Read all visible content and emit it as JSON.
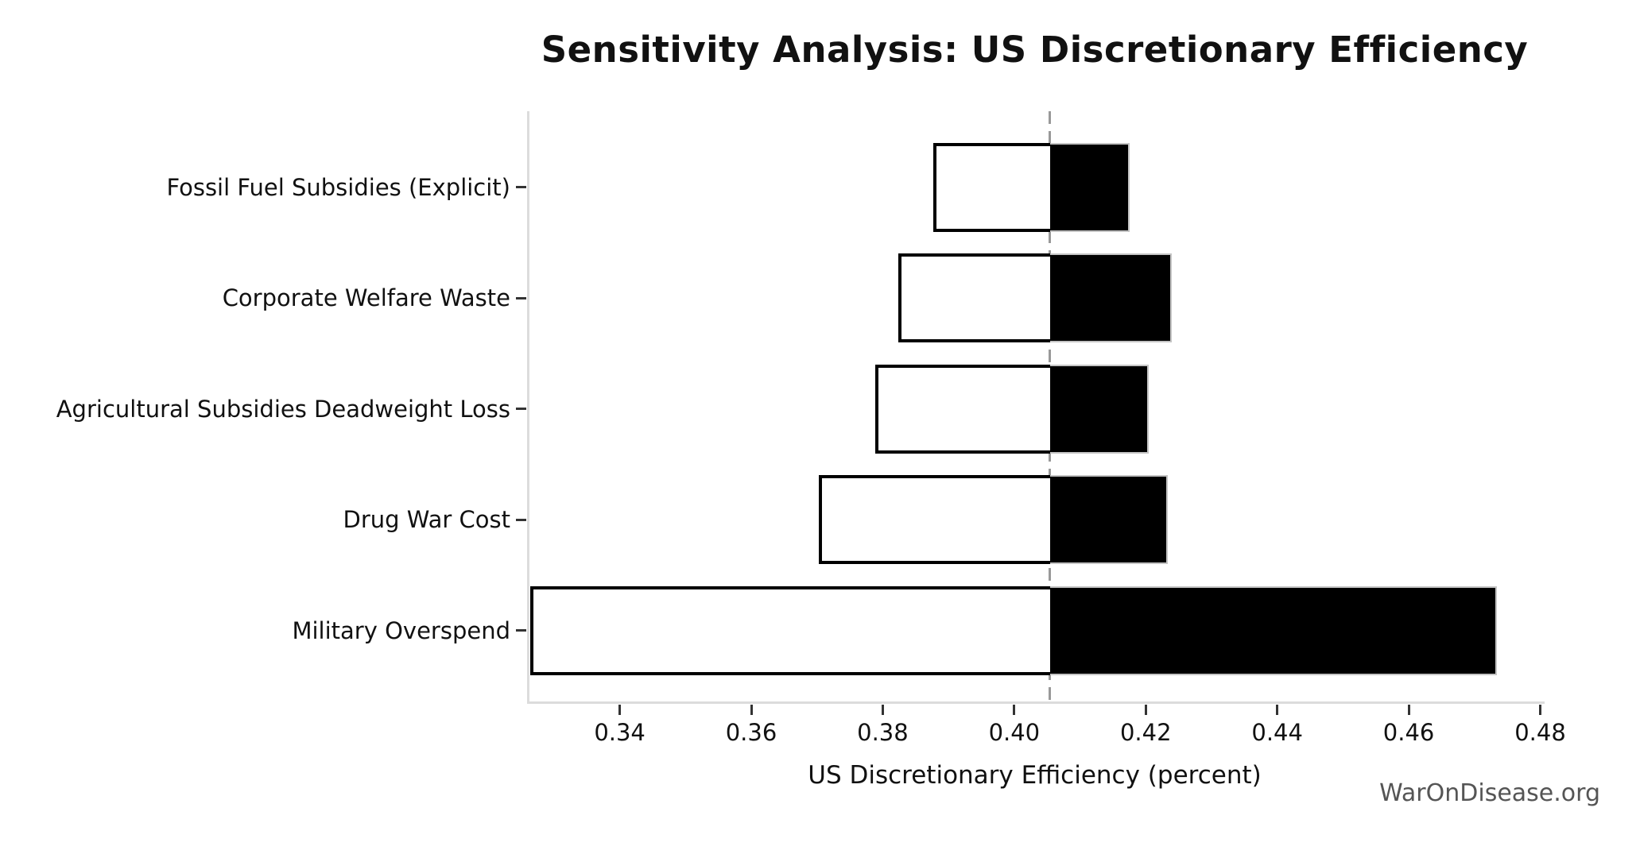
{
  "header": {
    "title": "Sensitivity Analysis: US Discretionary Efficiency"
  },
  "watermark": "WarOnDisease.org",
  "chart_data": {
    "type": "bar",
    "subtype": "tornado-sensitivity",
    "orientation": "horizontal",
    "title": "Sensitivity Analysis: US Discretionary Efficiency",
    "xlabel": "US Discretionary Efficiency (percent)",
    "ylabel": "",
    "grid": false,
    "legend": false,
    "baseline": 0.4054,
    "categories": [
      "Fossil Fuel Subsidies (Explicit)",
      "Corporate Welfare Waste",
      "Agricultural Subsidies Deadweight Loss",
      "Drug War Cost",
      "Military Overspend"
    ],
    "series": [
      {
        "name": "low",
        "values": [
          0.3877,
          0.3824,
          0.3789,
          0.3703,
          0.3264
        ]
      },
      {
        "name": "high",
        "values": [
          0.4175,
          0.4239,
          0.4205,
          0.4233,
          0.4734
        ]
      }
    ],
    "xlim": [
      0.3259,
      0.4803
    ],
    "xticks": [
      0.34,
      0.36,
      0.38,
      0.4,
      0.42,
      0.44,
      0.46,
      0.48
    ],
    "xtick_labels": [
      "0.34",
      "0.36",
      "0.38",
      "0.40",
      "0.42",
      "0.44",
      "0.46",
      "0.48"
    ],
    "colors": {
      "low_fill": "#ffffff",
      "low_edge": "#000000",
      "high_fill": "#000000",
      "high_edge": "#c4c4c4",
      "baseline_line": "#999999",
      "spine": "#dcdcdc",
      "tick": "#333333",
      "text": "#111111",
      "watermark": "#555555"
    }
  }
}
